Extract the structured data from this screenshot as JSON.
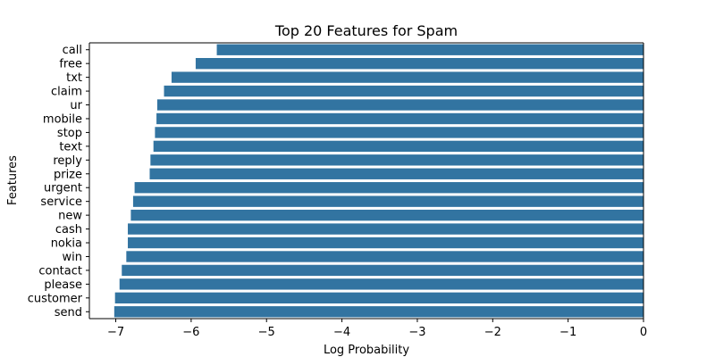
{
  "chart_data": {
    "type": "bar",
    "orientation": "horizontal",
    "title": "Top 20 Features for Spam",
    "xlabel": "Log Probability",
    "ylabel": "Features",
    "categories": [
      "call",
      "free",
      "txt",
      "claim",
      "ur",
      "mobile",
      "stop",
      "text",
      "reply",
      "prize",
      "urgent",
      "service",
      "new",
      "cash",
      "nokia",
      "win",
      "contact",
      "please",
      "customer",
      "send"
    ],
    "values": [
      -5.66,
      -5.94,
      -6.26,
      -6.36,
      -6.45,
      -6.46,
      -6.48,
      -6.5,
      -6.54,
      -6.55,
      -6.75,
      -6.77,
      -6.8,
      -6.84,
      -6.84,
      -6.86,
      -6.92,
      -6.95,
      -7.01,
      -7.02
    ],
    "xlim": [
      -7.35,
      0
    ],
    "xticks": [
      -7,
      -6,
      -5,
      -4,
      -3,
      -2,
      -1,
      0
    ],
    "xtick_labels": [
      "−7",
      "−6",
      "−5",
      "−4",
      "−3",
      "−2",
      "−1",
      "0"
    ],
    "bar_color": "#3274a1",
    "grid": false,
    "legend": "none"
  }
}
